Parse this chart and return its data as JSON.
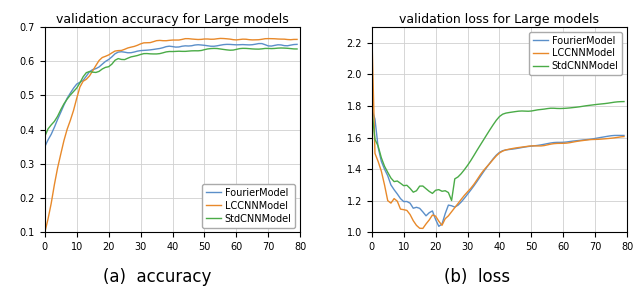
{
  "title_acc": "validation accuracy for Large models",
  "title_loss": "validation loss for Large models",
  "caption_acc": "(a)  accuracy",
  "caption_loss": "(b)  loss",
  "legend_labels": [
    "FourierModel",
    "LCCNNModel",
    "StdCNNModel"
  ],
  "colors": [
    "#5B8FC9",
    "#E8892A",
    "#4AAB47"
  ],
  "xlim": [
    0,
    80
  ],
  "acc_ylim": [
    0.1,
    0.7
  ],
  "loss_ylim": [
    1.0,
    2.3
  ],
  "acc_yticks": [
    0.1,
    0.2,
    0.3,
    0.4,
    0.5,
    0.6,
    0.7
  ],
  "loss_yticks": [
    1.0,
    1.2,
    1.4,
    1.6,
    1.8,
    2.0,
    2.2
  ],
  "xticks": [
    0,
    10,
    20,
    30,
    40,
    50,
    60,
    70,
    80
  ],
  "linewidth": 1.0,
  "title_fontsize": 9,
  "caption_fontsize": 12,
  "legend_fontsize": 7,
  "tick_fontsize": 7
}
